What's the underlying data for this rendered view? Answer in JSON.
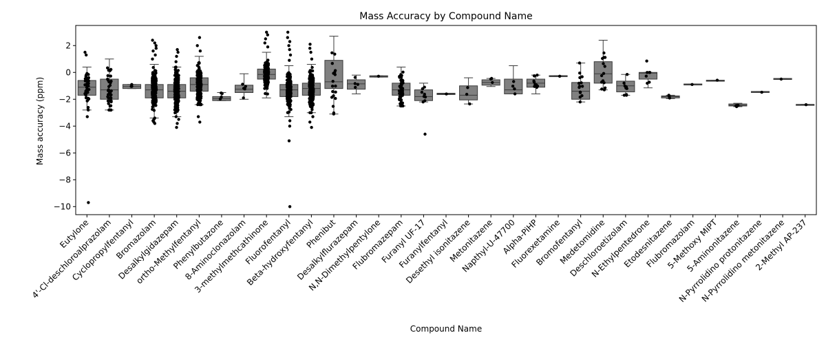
{
  "chart_data": {
    "type": "box",
    "title": "Mass Accuracy by Compound Name",
    "xlabel": "Compound Name",
    "ylabel": "Mass accuracy (ppm)",
    "ylim": [
      -10.6,
      3.5
    ],
    "yticks": [
      2,
      0,
      -2,
      -4,
      -6,
      -8,
      -10
    ],
    "grid": false,
    "box_color": "#808080",
    "point_color": "#000000",
    "categories": [
      "Eutylone",
      "4'-Cl-deschloroalprazolam",
      "Cyclopropylfentanyl",
      "Bromazolam",
      "Desalkylgidazepam",
      "ortho-Methylfentanyl",
      "Phenylbutazone",
      "8-Aminoclonazolam",
      "3-methylmethcathinone",
      "Fluorofentanyl",
      "Beta-hydroxyfentanyl",
      "Phenibut",
      "Desalkylflurazepam",
      "N,N-Dimethylpentylone",
      "Flubromazepam",
      "Furanyl UF-17",
      "Furanylfentanyl",
      "Desethyl isonitazene",
      "Metonitazene",
      "Napthyl-U-47700",
      "Alpha-PiHP",
      "Fluorexetamine",
      "Bromofentanyl",
      "Medetomidine",
      "Deschloroetizolam",
      "N-Ethylpentedrone",
      "Etodesnitazene",
      "Flubromazolam",
      "5-Methoxy MiPT",
      "5-Aminonitazene",
      "N-Pyrrolidino protonitazene",
      "N-Pyrrolidino metonitazene",
      "2-Methyl AP-237"
    ],
    "boxes": [
      {
        "q1": -1.7,
        "median": -1.1,
        "q3": -0.6,
        "whisker_low": -2.8,
        "whisker_high": 0.4,
        "n": 40,
        "outliers": [
          -3.3,
          -9.7,
          1.3,
          1.5
        ]
      },
      {
        "q1": -2.0,
        "median": -1.3,
        "q3": -0.5,
        "whisker_low": -2.8,
        "whisker_high": 1.0,
        "n": 45,
        "outliers": []
      },
      {
        "q1": -1.2,
        "median": -1.05,
        "q3": -0.9,
        "whisker_low": -1.2,
        "whisker_high": -0.9,
        "n": 3,
        "outliers": []
      },
      {
        "q1": -1.9,
        "median": -1.3,
        "q3": -0.9,
        "whisker_low": -3.4,
        "whisker_high": 0.6,
        "n": 600,
        "outliers": [
          -3.5,
          -3.6,
          -3.7,
          -3.8,
          1.0,
          1.3,
          1.6,
          1.8,
          2.0,
          2.2,
          2.4
        ]
      },
      {
        "q1": -1.9,
        "median": -1.4,
        "q3": -0.9,
        "whisker_low": -3.3,
        "whisker_high": 0.4,
        "n": 280,
        "outliers": [
          -3.5,
          -3.8,
          -4.1,
          0.8,
          1.2,
          1.5,
          1.7
        ]
      },
      {
        "q1": -1.4,
        "median": -0.9,
        "q3": -0.4,
        "whisker_low": -2.4,
        "whisker_high": 1.2,
        "n": 260,
        "outliers": [
          -3.3,
          -3.7,
          1.6,
          2.0,
          2.6
        ]
      },
      {
        "q1": -2.1,
        "median": -1.95,
        "q3": -1.8,
        "whisker_low": -2.1,
        "whisker_high": -1.5,
        "n": 4,
        "outliers": []
      },
      {
        "q1": -1.5,
        "median": -1.25,
        "q3": -0.95,
        "whisker_low": -2.0,
        "whisker_high": -0.1,
        "n": 5,
        "outliers": []
      },
      {
        "q1": -0.5,
        "median": -0.15,
        "q3": 0.25,
        "whisker_low": -1.9,
        "whisker_high": 1.5,
        "n": 320,
        "outliers": [
          1.9,
          2.2,
          2.5,
          2.8,
          3.0
        ]
      },
      {
        "q1": -1.8,
        "median": -1.3,
        "q3": -0.9,
        "whisker_low": -3.3,
        "whisker_high": 0.5,
        "n": 620,
        "outliers": [
          -3.6,
          -4.0,
          -5.1,
          -10.0,
          0.9,
          1.3,
          1.7,
          2.0,
          2.3,
          2.6,
          3.0
        ]
      },
      {
        "q1": -1.7,
        "median": -1.2,
        "q3": -0.8,
        "whisker_low": -3.0,
        "whisker_high": 0.6,
        "n": 340,
        "outliers": [
          -3.3,
          -3.7,
          -4.1,
          1.0,
          1.5,
          1.8,
          2.1
        ]
      },
      {
        "q1": -1.2,
        "median": -0.7,
        "q3": 0.9,
        "whisker_low": -3.1,
        "whisker_high": 2.7,
        "n": 18,
        "outliers": []
      },
      {
        "q1": -1.25,
        "median": -0.85,
        "q3": -0.55,
        "whisker_low": -1.6,
        "whisker_high": -0.2,
        "n": 4,
        "outliers": []
      },
      {
        "q1": -0.35,
        "median": -0.3,
        "q3": -0.25,
        "whisker_low": -0.35,
        "whisker_high": -0.25,
        "n": 1,
        "outliers": []
      },
      {
        "q1": -1.7,
        "median": -1.3,
        "q3": -0.8,
        "whisker_low": -2.5,
        "whisker_high": 0.4,
        "n": 60,
        "outliers": []
      },
      {
        "q1": -2.1,
        "median": -1.8,
        "q3": -1.3,
        "whisker_low": -2.2,
        "whisker_high": -0.8,
        "n": 8,
        "outliers": [
          -4.6
        ]
      },
      {
        "q1": -1.65,
        "median": -1.6,
        "q3": -1.55,
        "whisker_low": -1.65,
        "whisker_high": -1.55,
        "n": 1,
        "outliers": []
      },
      {
        "q1": -2.05,
        "median": -1.7,
        "q3": -1.0,
        "whisker_low": -2.35,
        "whisker_high": -0.4,
        "n": 3,
        "outliers": []
      },
      {
        "q1": -0.95,
        "median": -0.75,
        "q3": -0.55,
        "whisker_low": -1.05,
        "whisker_high": -0.45,
        "n": 3,
        "outliers": []
      },
      {
        "q1": -1.6,
        "median": -1.3,
        "q3": -0.5,
        "whisker_low": -1.6,
        "whisker_high": 0.5,
        "n": 4,
        "outliers": []
      },
      {
        "q1": -1.1,
        "median": -0.8,
        "q3": -0.5,
        "whisker_low": -1.6,
        "whisker_high": -0.2,
        "n": 12,
        "outliers": []
      },
      {
        "q1": -0.3,
        "median": -0.27,
        "q3": -0.24,
        "whisker_low": -0.3,
        "whisker_high": -0.24,
        "n": 1,
        "outliers": []
      },
      {
        "q1": -2.0,
        "median": -1.4,
        "q3": -0.75,
        "whisker_low": -2.2,
        "whisker_high": 0.7,
        "n": 15,
        "outliers": []
      },
      {
        "q1": -0.8,
        "median": -0.1,
        "q3": 0.8,
        "whisker_low": -1.3,
        "whisker_high": 2.4,
        "n": 14,
        "outliers": []
      },
      {
        "q1": -1.45,
        "median": -1.0,
        "q3": -0.65,
        "whisker_low": -1.7,
        "whisker_high": -0.15,
        "n": 9,
        "outliers": []
      },
      {
        "q1": -0.5,
        "median": -0.05,
        "q3": 0.0,
        "whisker_low": -1.15,
        "whisker_high": 0.0,
        "n": 6,
        "outliers": [
          0.85
        ]
      },
      {
        "q1": -1.9,
        "median": -1.8,
        "q3": -1.75,
        "whisker_low": -1.95,
        "whisker_high": -1.7,
        "n": 3,
        "outliers": []
      },
      {
        "q1": -0.9,
        "median": -0.88,
        "q3": -0.86,
        "whisker_low": -0.9,
        "whisker_high": -0.86,
        "n": 1,
        "outliers": []
      },
      {
        "q1": -0.62,
        "median": -0.6,
        "q3": -0.58,
        "whisker_low": -0.62,
        "whisker_high": -0.58,
        "n": 1,
        "outliers": []
      },
      {
        "q1": -2.5,
        "median": -2.45,
        "q3": -2.35,
        "whisker_low": -2.55,
        "whisker_high": -2.3,
        "n": 5,
        "outliers": []
      },
      {
        "q1": -1.48,
        "median": -1.45,
        "q3": -1.42,
        "whisker_low": -1.48,
        "whisker_high": -1.42,
        "n": 1,
        "outliers": []
      },
      {
        "q1": -0.5,
        "median": -0.48,
        "q3": -0.45,
        "whisker_low": -0.5,
        "whisker_high": -0.45,
        "n": 1,
        "outliers": []
      },
      {
        "q1": -2.42,
        "median": -2.4,
        "q3": -2.38,
        "whisker_low": -2.42,
        "whisker_high": -2.38,
        "n": 1,
        "outliers": []
      }
    ]
  }
}
